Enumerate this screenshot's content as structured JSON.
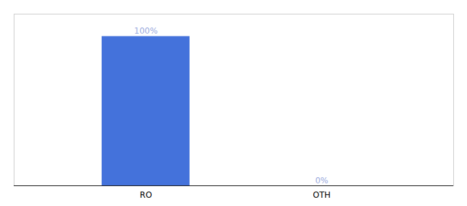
{
  "chart_data": {
    "type": "bar",
    "categories": [
      "RO",
      "OTH"
    ],
    "values": [
      100,
      0
    ],
    "value_labels": [
      "100%",
      "0%"
    ],
    "data_labels": true,
    "color": "#4472db",
    "ylim": [
      0,
      115
    ],
    "tick_labels": "x"
  }
}
